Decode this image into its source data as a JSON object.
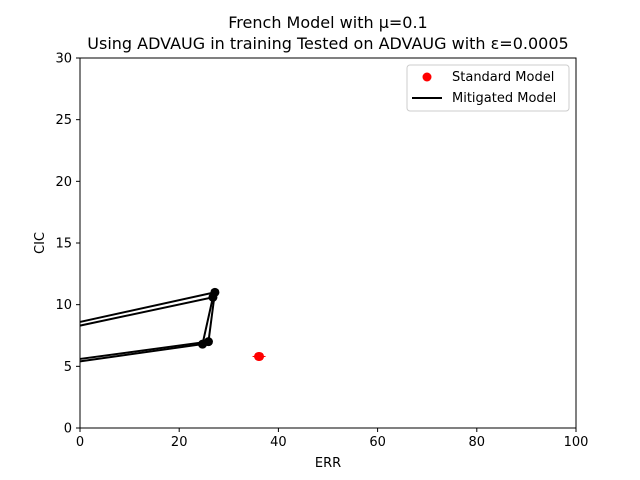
{
  "chart_data": {
    "type": "scatter",
    "title_lines": [
      "French Model with μ=0.1",
      "Using ADVAUG in training Tested on ADVAUG with ε=0.0005"
    ],
    "xlabel": "ERR",
    "ylabel": "CIC",
    "xlim": [
      0,
      100
    ],
    "ylim": [
      0,
      30
    ],
    "xticks": [
      0,
      20,
      40,
      60,
      80,
      100
    ],
    "yticks": [
      0,
      5,
      10,
      15,
      20,
      25,
      30
    ],
    "grid": false,
    "legend_position": "top-right",
    "series": [
      {
        "name": "Standard Model",
        "kind": "points",
        "color": "#ff0000",
        "points": [
          {
            "x": 36.0,
            "y": 5.8
          },
          {
            "x": 36.2,
            "y": 5.8
          }
        ],
        "error_bars": true
      },
      {
        "name": "Mitigated Model",
        "kind": "line-with-markers",
        "color": "#000000",
        "lines": [
          [
            {
              "x": 0.0,
              "y": 5.6
            },
            {
              "x": 25.9,
              "y": 7.0
            },
            {
              "x": 27.2,
              "y": 11.0
            },
            {
              "x": 0.0,
              "y": 8.6
            }
          ],
          [
            {
              "x": 0.0,
              "y": 5.4
            },
            {
              "x": 24.7,
              "y": 6.8
            },
            {
              "x": 26.8,
              "y": 10.6
            },
            {
              "x": 0.0,
              "y": 8.3
            }
          ]
        ],
        "markers": [
          {
            "x": 25.9,
            "y": 7.0
          },
          {
            "x": 24.7,
            "y": 6.8
          },
          {
            "x": 27.2,
            "y": 11.0
          },
          {
            "x": 26.8,
            "y": 10.6
          }
        ]
      }
    ]
  }
}
